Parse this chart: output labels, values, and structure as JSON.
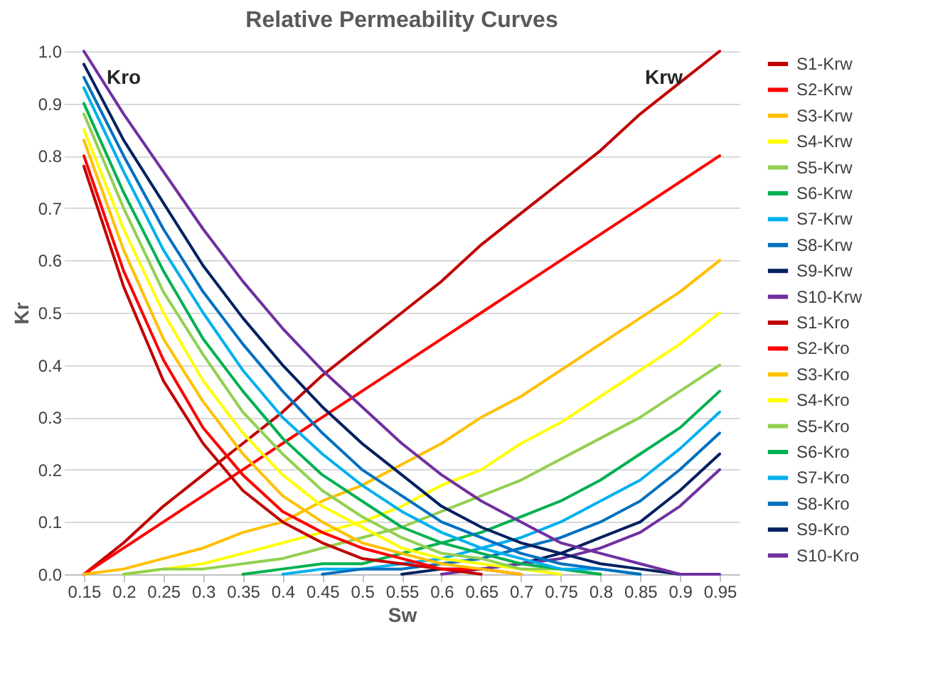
{
  "chart_data": {
    "type": "line",
    "title": "Relative Permeability Curves",
    "xlabel": "Sw",
    "ylabel": "Kr",
    "categories": [
      "0.15",
      "0.2",
      "0.25",
      "0.3",
      "0.35",
      "0.4",
      "0.45",
      "0.5",
      "0.55",
      "0.6",
      "0.65",
      "0.7",
      "0.75",
      "0.8",
      "0.85",
      "0.9",
      "0.95"
    ],
    "ylim": [
      0,
      1
    ],
    "yticks": [
      {
        "value": 0,
        "label": "0.0"
      },
      0.1,
      0.2,
      0.3,
      0.4,
      0.5,
      0.6,
      0.7,
      0.8,
      0.9,
      {
        "value": 1,
        "label": "1.0"
      }
    ],
    "grid": "y",
    "legend": "right",
    "marker": "none",
    "line_style": "solid",
    "annotations": [
      "Kro",
      "Krw"
    ],
    "series": [
      {
        "name": "S1-Krw",
        "color": "#c00000",
        "values": [
          0,
          0.06,
          0.13,
          0.19,
          0.25,
          0.31,
          0.38,
          0.44,
          0.5,
          0.56,
          0.63,
          0.69,
          0.75,
          0.81,
          0.88,
          0.94,
          1.0
        ]
      },
      {
        "name": "S2-Krw",
        "color": "#ff0000",
        "values": [
          0,
          0.05,
          0.1,
          0.15,
          0.2,
          0.25,
          0.3,
          0.35,
          0.4,
          0.45,
          0.5,
          0.55,
          0.6,
          0.65,
          0.7,
          0.75,
          0.8
        ]
      },
      {
        "name": "S3-Krw",
        "color": "#ffc000",
        "values": [
          0,
          0.01,
          0.03,
          0.05,
          0.08,
          0.1,
          0.14,
          0.17,
          0.21,
          0.25,
          0.3,
          0.34,
          0.39,
          0.44,
          0.49,
          0.54,
          0.6
        ]
      },
      {
        "name": "S4-Krw",
        "color": "#ffff00",
        "values": [
          null,
          0,
          0.01,
          0.02,
          0.04,
          0.06,
          0.08,
          0.1,
          0.13,
          0.17,
          0.2,
          0.25,
          0.29,
          0.34,
          0.39,
          0.44,
          0.5
        ]
      },
      {
        "name": "S5-Krw",
        "color": "#92d050",
        "values": [
          null,
          0,
          0.01,
          0.01,
          0.02,
          0.03,
          0.05,
          0.07,
          0.09,
          0.12,
          0.15,
          0.18,
          0.22,
          0.26,
          0.3,
          0.35,
          0.4
        ]
      },
      {
        "name": "S6-Krw",
        "color": "#00b050",
        "values": [
          null,
          null,
          null,
          null,
          0,
          0.01,
          0.02,
          0.02,
          0.04,
          0.06,
          0.08,
          0.11,
          0.14,
          0.18,
          0.23,
          0.28,
          0.35
        ]
      },
      {
        "name": "S7-Krw",
        "color": "#00b0f0",
        "values": [
          null,
          null,
          null,
          null,
          null,
          0,
          0.01,
          0.01,
          0.02,
          0.03,
          0.05,
          0.07,
          0.1,
          0.14,
          0.18,
          0.24,
          0.31
        ]
      },
      {
        "name": "S8-Krw",
        "color": "#0070c0",
        "values": [
          null,
          null,
          null,
          null,
          null,
          null,
          0,
          0.01,
          0.01,
          0.02,
          0.03,
          0.05,
          0.07,
          0.1,
          0.14,
          0.2,
          0.27
        ]
      },
      {
        "name": "S9-Krw",
        "color": "#002060",
        "values": [
          null,
          null,
          null,
          null,
          null,
          null,
          null,
          null,
          0,
          0.01,
          0.01,
          0.02,
          0.04,
          0.07,
          0.1,
          0.16,
          0.23
        ]
      },
      {
        "name": "S10-Krw",
        "color": "#7030a0",
        "values": [
          null,
          null,
          null,
          null,
          null,
          null,
          null,
          null,
          null,
          0,
          0.01,
          0.02,
          0.03,
          0.05,
          0.08,
          0.13,
          0.2
        ]
      },
      {
        "name": "S1-Kro",
        "color": "#c00000",
        "values": [
          0.78,
          0.55,
          0.37,
          0.25,
          0.16,
          0.1,
          0.06,
          0.03,
          0.02,
          0.01,
          0,
          null,
          null,
          null,
          null,
          null,
          null
        ]
      },
      {
        "name": "S2-Kro",
        "color": "#ff0000",
        "values": [
          0.8,
          0.58,
          0.41,
          0.28,
          0.19,
          0.12,
          0.08,
          0.05,
          0.03,
          0.01,
          0.01,
          0,
          null,
          null,
          null,
          null,
          null
        ]
      },
      {
        "name": "S3-Kro",
        "color": "#ffc000",
        "values": [
          0.83,
          0.62,
          0.45,
          0.33,
          0.23,
          0.15,
          0.1,
          0.06,
          0.04,
          0.02,
          0.01,
          0,
          null,
          null,
          null,
          null,
          null
        ]
      },
      {
        "name": "S4-Kro",
        "color": "#ffff00",
        "values": [
          0.85,
          0.66,
          0.5,
          0.37,
          0.27,
          0.19,
          0.13,
          0.09,
          0.05,
          0.03,
          0.02,
          0.01,
          0,
          null,
          null,
          null,
          null
        ]
      },
      {
        "name": "S5-Kro",
        "color": "#92d050",
        "values": [
          0.88,
          0.7,
          0.54,
          0.42,
          0.31,
          0.23,
          0.16,
          0.11,
          0.07,
          0.04,
          0.03,
          0.01,
          0.01,
          0,
          null,
          null,
          null
        ]
      },
      {
        "name": "S6-Kro",
        "color": "#00b050",
        "values": [
          0.9,
          0.73,
          0.58,
          0.45,
          0.35,
          0.26,
          0.19,
          0.14,
          0.09,
          0.06,
          0.04,
          0.02,
          0.01,
          0,
          null,
          null,
          null
        ]
      },
      {
        "name": "S7-Kro",
        "color": "#00b0f0",
        "values": [
          0.93,
          0.77,
          0.62,
          0.5,
          0.39,
          0.3,
          0.23,
          0.17,
          0.12,
          0.08,
          0.05,
          0.03,
          0.01,
          0.01,
          0,
          null,
          null
        ]
      },
      {
        "name": "S8-Kro",
        "color": "#0070c0",
        "values": [
          0.95,
          0.8,
          0.66,
          0.54,
          0.44,
          0.35,
          0.27,
          0.2,
          0.15,
          0.1,
          0.07,
          0.04,
          0.02,
          0.01,
          0,
          null,
          null
        ]
      },
      {
        "name": "S9-Kro",
        "color": "#002060",
        "values": [
          0.975,
          0.83,
          0.71,
          0.59,
          0.49,
          0.4,
          0.32,
          0.25,
          0.19,
          0.13,
          0.09,
          0.06,
          0.04,
          0.02,
          0.01,
          0,
          null
        ]
      },
      {
        "name": "S10-Kro",
        "color": "#7030a0",
        "values": [
          1.0,
          0.88,
          0.77,
          0.66,
          0.56,
          0.47,
          0.39,
          0.32,
          0.25,
          0.19,
          0.14,
          0.1,
          0.06,
          0.04,
          0.02,
          0,
          0
        ]
      }
    ]
  }
}
